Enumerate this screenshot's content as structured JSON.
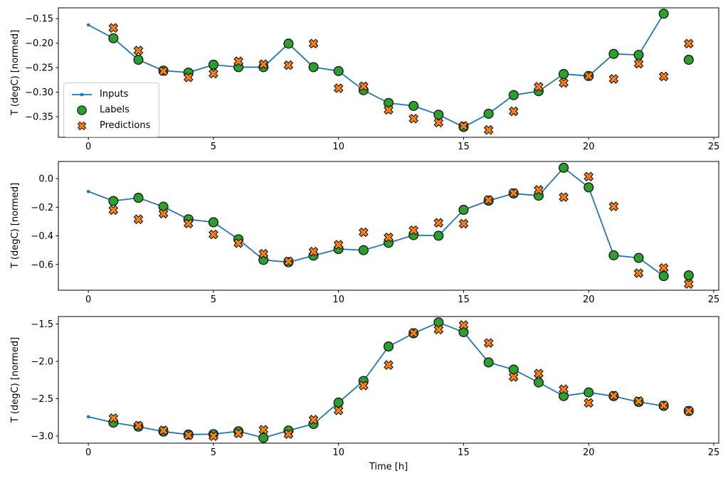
{
  "colors": {
    "inputs": "#1f77b4",
    "labels": "#2ca02c",
    "predictions": "#ff7f0e",
    "marker_edge": "#141414",
    "axis": "#000000",
    "legend_border": "#cccccc"
  },
  "xlabel": "Time [h]",
  "legend": {
    "items": [
      {
        "label": "Inputs",
        "marker": "line-dot"
      },
      {
        "label": "Labels",
        "marker": "circle"
      },
      {
        "label": "Predictions",
        "marker": "x-cross"
      }
    ]
  },
  "chart_data": [
    {
      "type": "line",
      "title": "",
      "ylabel": "T (degC) [normed]",
      "xlim": [
        -1.2,
        25.2
      ],
      "ylim": [
        -0.392,
        -0.128
      ],
      "xticks": {
        "values": [
          0,
          5,
          10,
          15,
          20,
          25
        ],
        "labels": [
          "0",
          "5",
          "10",
          "15",
          "20",
          "25"
        ]
      },
      "yticks": {
        "values": [
          -0.15,
          -0.2,
          -0.25,
          -0.3,
          -0.35
        ],
        "labels": [
          "−0.15",
          "−0.20",
          "−0.25",
          "−0.30",
          "−0.35"
        ]
      },
      "series": [
        {
          "name": "Inputs",
          "kind": "line-dot",
          "x": [
            0,
            1,
            2,
            3,
            4,
            5,
            6,
            7,
            8,
            9,
            10,
            11,
            12,
            13,
            14,
            15,
            16,
            17,
            18,
            19,
            20,
            21,
            22,
            23
          ],
          "values": [
            -0.163,
            -0.19,
            -0.234,
            -0.256,
            -0.26,
            -0.244,
            -0.249,
            -0.249,
            -0.201,
            -0.249,
            -0.257,
            -0.296,
            -0.322,
            -0.328,
            -0.346,
            -0.371,
            -0.344,
            -0.306,
            -0.298,
            -0.263,
            -0.267,
            -0.222,
            -0.224,
            -0.14
          ]
        },
        {
          "name": "Labels",
          "kind": "circle",
          "x": [
            1,
            2,
            3,
            4,
            5,
            6,
            7,
            8,
            9,
            10,
            11,
            12,
            13,
            14,
            15,
            16,
            17,
            18,
            19,
            20,
            21,
            22,
            23,
            24
          ],
          "values": [
            -0.19,
            -0.234,
            -0.256,
            -0.26,
            -0.244,
            -0.249,
            -0.249,
            -0.201,
            -0.249,
            -0.257,
            -0.296,
            -0.322,
            -0.328,
            -0.346,
            -0.371,
            -0.344,
            -0.306,
            -0.298,
            -0.263,
            -0.267,
            -0.222,
            -0.224,
            -0.14,
            -0.234
          ]
        },
        {
          "name": "Predictions",
          "kind": "x-cross",
          "x": [
            1,
            2,
            3,
            4,
            5,
            6,
            7,
            8,
            9,
            10,
            11,
            12,
            13,
            14,
            15,
            16,
            17,
            18,
            19,
            20,
            21,
            22,
            23,
            24
          ],
          "values": [
            -0.169,
            -0.215,
            -0.257,
            -0.27,
            -0.262,
            -0.237,
            -0.243,
            -0.245,
            -0.201,
            -0.292,
            -0.288,
            -0.336,
            -0.354,
            -0.362,
            -0.369,
            -0.377,
            -0.339,
            -0.289,
            -0.281,
            -0.267,
            -0.273,
            -0.242,
            -0.268,
            -0.201
          ]
        }
      ]
    },
    {
      "type": "line",
      "title": "",
      "ylabel": "T (degC) [normed]",
      "xlim": [
        -1.2,
        25.2
      ],
      "ylim": [
        -0.78,
        0.12
      ],
      "xticks": {
        "values": [
          0,
          5,
          10,
          15,
          20,
          25
        ],
        "labels": [
          "0",
          "5",
          "10",
          "15",
          "20",
          "25"
        ]
      },
      "yticks": {
        "values": [
          0.0,
          -0.2,
          -0.4,
          -0.6
        ],
        "labels": [
          "0.0",
          "−0.2",
          "−0.4",
          "−0.6"
        ]
      },
      "series": [
        {
          "name": "Inputs",
          "kind": "line-dot",
          "x": [
            0,
            1,
            2,
            3,
            4,
            5,
            6,
            7,
            8,
            9,
            10,
            11,
            12,
            13,
            14,
            15,
            16,
            17,
            18,
            19,
            20,
            21,
            22,
            23
          ],
          "values": [
            -0.09,
            -0.156,
            -0.134,
            -0.196,
            -0.284,
            -0.305,
            -0.424,
            -0.568,
            -0.584,
            -0.538,
            -0.492,
            -0.5,
            -0.449,
            -0.395,
            -0.399,
            -0.218,
            -0.154,
            -0.104,
            -0.119,
            0.076,
            -0.061,
            -0.536,
            -0.554,
            -0.681
          ]
        },
        {
          "name": "Labels",
          "kind": "circle",
          "x": [
            1,
            2,
            3,
            4,
            5,
            6,
            7,
            8,
            9,
            10,
            11,
            12,
            13,
            14,
            15,
            16,
            17,
            18,
            19,
            20,
            21,
            22,
            23,
            24
          ],
          "values": [
            -0.156,
            -0.134,
            -0.196,
            -0.284,
            -0.305,
            -0.424,
            -0.568,
            -0.584,
            -0.538,
            -0.492,
            -0.5,
            -0.449,
            -0.395,
            -0.399,
            -0.218,
            -0.154,
            -0.104,
            -0.119,
            0.076,
            -0.061,
            -0.536,
            -0.554,
            -0.681,
            -0.676
          ]
        },
        {
          "name": "Predictions",
          "kind": "x-cross",
          "x": [
            1,
            2,
            3,
            4,
            5,
            6,
            7,
            8,
            9,
            10,
            11,
            12,
            13,
            14,
            15,
            16,
            17,
            18,
            19,
            20,
            21,
            22,
            23,
            24
          ],
          "values": [
            -0.22,
            -0.284,
            -0.244,
            -0.314,
            -0.39,
            -0.451,
            -0.525,
            -0.578,
            -0.51,
            -0.462,
            -0.375,
            -0.411,
            -0.361,
            -0.309,
            -0.315,
            -0.149,
            -0.1,
            -0.079,
            -0.129,
            0.014,
            -0.194,
            -0.661,
            -0.625,
            -0.736
          ]
        }
      ]
    },
    {
      "type": "line",
      "title": "",
      "ylabel": "T (degC) [normed]",
      "xlabel": "Time [h]",
      "xlim": [
        -1.2,
        25.2
      ],
      "ylim": [
        -3.095,
        -1.4
      ],
      "xticks": {
        "values": [
          0,
          5,
          10,
          15,
          20,
          25
        ],
        "labels": [
          "0",
          "5",
          "10",
          "15",
          "20",
          "25"
        ]
      },
      "yticks": {
        "values": [
          -1.5,
          -2.0,
          -2.5,
          -3.0
        ],
        "labels": [
          "−1.5",
          "−2.0",
          "−2.5",
          "−3.0"
        ]
      },
      "series": [
        {
          "name": "Inputs",
          "kind": "line-dot",
          "x": [
            0,
            1,
            2,
            3,
            4,
            5,
            6,
            7,
            8,
            9,
            10,
            11,
            12,
            13,
            14,
            15,
            16,
            17,
            18,
            19,
            20,
            21,
            22,
            23
          ],
          "values": [
            -2.742,
            -2.82,
            -2.874,
            -2.94,
            -2.979,
            -2.974,
            -2.936,
            -3.024,
            -2.926,
            -2.838,
            -2.552,
            -2.262,
            -1.801,
            -1.624,
            -1.479,
            -1.609,
            -2.014,
            -2.11,
            -2.282,
            -2.464,
            -2.416,
            -2.466,
            -2.544,
            -2.596
          ]
        },
        {
          "name": "Labels",
          "kind": "circle",
          "x": [
            1,
            2,
            3,
            4,
            5,
            6,
            7,
            8,
            9,
            10,
            11,
            12,
            13,
            14,
            15,
            16,
            17,
            18,
            19,
            20,
            21,
            22,
            23,
            24
          ],
          "values": [
            -2.82,
            -2.874,
            -2.94,
            -2.979,
            -2.974,
            -2.936,
            -3.024,
            -2.926,
            -2.838,
            -2.552,
            -2.262,
            -1.801,
            -1.624,
            -1.479,
            -1.609,
            -2.014,
            -2.11,
            -2.282,
            -2.464,
            -2.416,
            -2.466,
            -2.544,
            -2.596,
            -2.665
          ]
        },
        {
          "name": "Predictions",
          "kind": "x-cross",
          "x": [
            1,
            2,
            3,
            4,
            5,
            6,
            7,
            8,
            9,
            10,
            11,
            12,
            13,
            14,
            15,
            16,
            17,
            18,
            19,
            20,
            21,
            22,
            23,
            24
          ],
          "values": [
            -2.76,
            -2.86,
            -2.924,
            -2.989,
            -3.001,
            -2.964,
            -2.916,
            -2.974,
            -2.781,
            -2.656,
            -2.324,
            -2.049,
            -1.62,
            -1.574,
            -1.514,
            -1.754,
            -2.208,
            -2.164,
            -2.374,
            -2.556,
            -2.459,
            -2.531,
            -2.59,
            -2.662
          ]
        }
      ]
    }
  ]
}
